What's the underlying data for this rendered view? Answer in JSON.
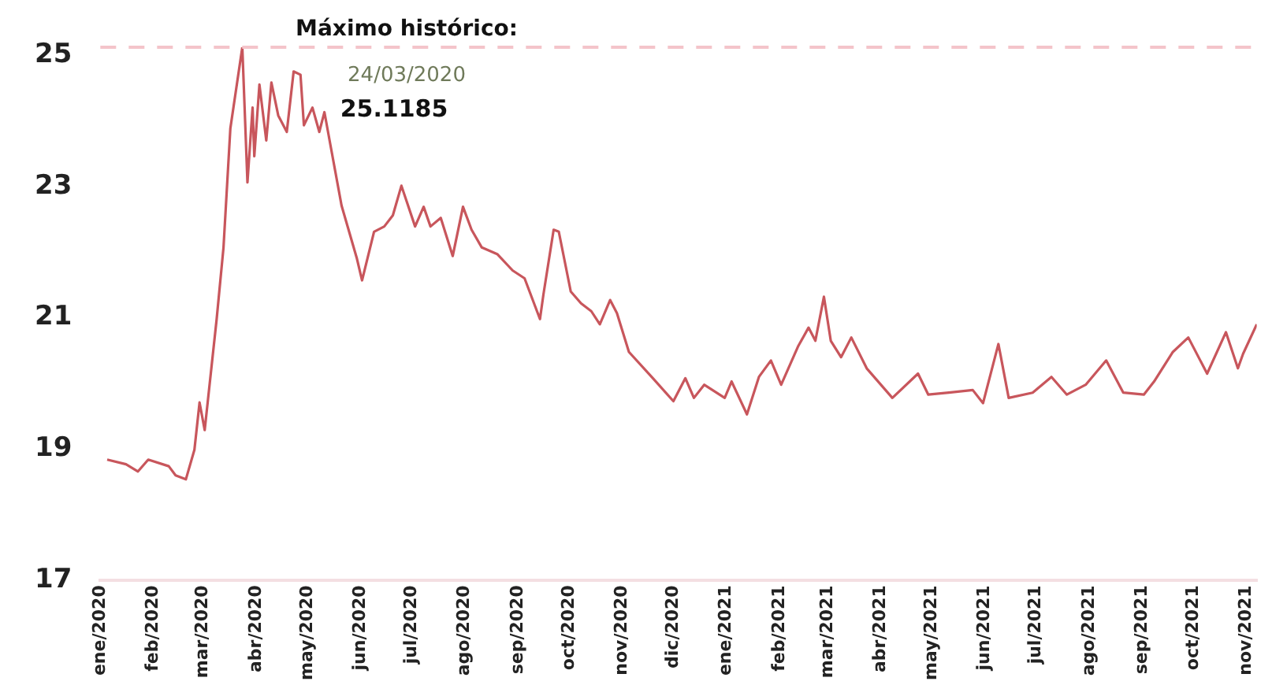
{
  "chart_data": {
    "type": "line",
    "x": [
      "2020-01-05",
      "2020-01-16",
      "2020-01-23",
      "2020-01-29",
      "2020-02-10",
      "2020-02-14",
      "2020-02-20",
      "2020-02-25",
      "2020-02-28",
      "2020-03-02",
      "2020-03-09",
      "2020-03-13",
      "2020-03-17",
      "2020-03-24",
      "2020-03-27",
      "2020-03-30",
      "2020-03-31",
      "2020-04-03",
      "2020-04-07",
      "2020-04-10",
      "2020-04-14",
      "2020-04-19",
      "2020-04-23",
      "2020-04-27",
      "2020-04-29",
      "2020-05-04",
      "2020-05-08",
      "2020-05-11",
      "2020-05-15",
      "2020-05-21",
      "2020-05-30",
      "2020-06-02",
      "2020-06-09",
      "2020-06-15",
      "2020-06-20",
      "2020-06-25",
      "2020-07-03",
      "2020-07-08",
      "2020-07-12",
      "2020-07-18",
      "2020-07-25",
      "2020-07-31",
      "2020-08-05",
      "2020-08-11",
      "2020-08-20",
      "2020-08-29",
      "2020-09-05",
      "2020-09-14",
      "2020-09-16",
      "2020-09-22",
      "2020-09-25",
      "2020-10-02",
      "2020-10-08",
      "2020-10-14",
      "2020-10-19",
      "2020-10-25",
      "2020-10-29",
      "2020-11-05",
      "2020-11-19",
      "2020-12-01",
      "2020-12-08",
      "2020-12-13",
      "2020-12-19",
      "2020-12-31",
      "2021-01-04",
      "2021-01-13",
      "2021-01-20",
      "2021-01-27",
      "2021-02-02",
      "2021-02-12",
      "2021-02-18",
      "2021-02-22",
      "2021-02-27",
      "2021-03-03",
      "2021-03-09",
      "2021-03-15",
      "2021-03-24",
      "2021-04-08",
      "2021-04-23",
      "2021-04-29",
      "2021-05-11",
      "2021-05-25",
      "2021-05-31",
      "2021-06-09",
      "2021-06-15",
      "2021-06-29",
      "2021-07-10",
      "2021-07-19",
      "2021-07-30",
      "2021-08-11",
      "2021-08-21",
      "2021-09-02",
      "2021-09-08",
      "2021-09-19",
      "2021-09-28",
      "2021-10-09",
      "2021-10-20",
      "2021-10-27",
      "2021-10-30",
      "2021-11-07"
    ],
    "series": [
      {
        "color": "#c8565c",
        "values": [
          18.84,
          18.77,
          18.66,
          18.84,
          18.74,
          18.6,
          18.54,
          18.99,
          19.71,
          19.29,
          20.98,
          22.07,
          23.88,
          25.1185,
          23.06,
          24.2,
          23.46,
          24.55,
          23.7,
          24.58,
          24.08,
          23.83,
          24.75,
          24.7,
          23.93,
          24.2,
          23.83,
          24.13,
          23.56,
          22.71,
          21.9,
          21.57,
          22.31,
          22.39,
          22.56,
          23.01,
          22.39,
          22.69,
          22.39,
          22.52,
          21.94,
          22.69,
          22.34,
          22.07,
          21.97,
          21.72,
          21.6,
          20.98,
          21.35,
          22.34,
          22.31,
          21.4,
          21.22,
          21.1,
          20.9,
          21.27,
          21.07,
          20.48,
          20.08,
          19.73,
          20.08,
          19.78,
          19.98,
          19.78,
          20.03,
          19.53,
          20.1,
          20.35,
          19.98,
          20.57,
          20.85,
          20.65,
          21.32,
          20.65,
          20.4,
          20.7,
          20.23,
          19.78,
          20.15,
          19.83,
          19.86,
          19.9,
          19.7,
          20.6,
          19.78,
          19.86,
          20.1,
          19.83,
          19.98,
          20.35,
          19.86,
          19.83,
          20.03,
          20.48,
          20.7,
          20.15,
          20.78,
          20.23,
          20.45,
          20.9
        ]
      }
    ],
    "xlim": [
      "2020-01-01",
      "2021-11-07"
    ],
    "xticks": [
      {
        "value": "2020-01-01",
        "label": "ene/2020"
      },
      {
        "value": "2020-02-01",
        "label": "feb/2020"
      },
      {
        "value": "2020-03-01",
        "label": "mar/2020"
      },
      {
        "value": "2020-04-01",
        "label": "abr/2020"
      },
      {
        "value": "2020-05-01",
        "label": "may/2020"
      },
      {
        "value": "2020-06-01",
        "label": "jun/2020"
      },
      {
        "value": "2020-07-01",
        "label": "jul/2020"
      },
      {
        "value": "2020-08-01",
        "label": "ago/2020"
      },
      {
        "value": "2020-09-01",
        "label": "sep/2020"
      },
      {
        "value": "2020-10-01",
        "label": "oct/2020"
      },
      {
        "value": "2020-11-01",
        "label": "nov/2020"
      },
      {
        "value": "2020-12-01",
        "label": "dic/2020"
      },
      {
        "value": "2021-01-01",
        "label": "ene/2021"
      },
      {
        "value": "2021-02-01",
        "label": "feb/2021"
      },
      {
        "value": "2021-03-01",
        "label": "mar/2021"
      },
      {
        "value": "2021-04-01",
        "label": "abr/2021"
      },
      {
        "value": "2021-05-01",
        "label": "may/2021"
      },
      {
        "value": "2021-06-01",
        "label": "jun/2021"
      },
      {
        "value": "2021-07-01",
        "label": "jul/2021"
      },
      {
        "value": "2021-08-01",
        "label": "ago/2021"
      },
      {
        "value": "2021-09-01",
        "label": "sep/2021"
      },
      {
        "value": "2021-10-01",
        "label": "oct/2021"
      },
      {
        "value": "2021-11-01",
        "label": "nov/2021"
      }
    ],
    "ylim": [
      17,
      25.1185
    ],
    "yticks": [
      17,
      19,
      21,
      23,
      25
    ],
    "grid": false,
    "legend": false,
    "marker": "none",
    "line_style": "solid",
    "ref_lines": [
      {
        "axis": "y",
        "value": 25.1185,
        "label": "Máximo histórico:",
        "color": "#f4c4ca",
        "line_style": "dashed"
      }
    ],
    "annotations": [
      "24/03/2020",
      "25.1185"
    ]
  }
}
